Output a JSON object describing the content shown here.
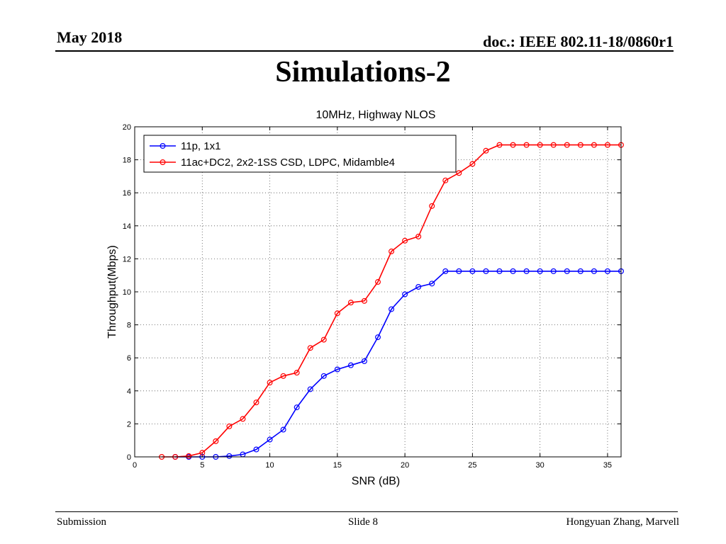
{
  "header": {
    "date": "May 2018",
    "doc": "doc.: IEEE 802.11-18/0860r1"
  },
  "slide": {
    "title": "Simulations-2"
  },
  "footer": {
    "left": "Submission",
    "center": "Slide 8",
    "right": "Hongyuan Zhang, Marvell"
  },
  "chart_data": {
    "type": "line",
    "title": "10MHz, Highway NLOS",
    "xlabel": "SNR (dB)",
    "ylabel": "Throughput(Mbps)",
    "xlim": [
      0,
      36
    ],
    "ylim": [
      0,
      20
    ],
    "xticks": [
      0,
      5,
      10,
      15,
      20,
      25,
      30,
      35
    ],
    "yticks": [
      0,
      2,
      4,
      6,
      8,
      10,
      12,
      14,
      16,
      18,
      20
    ],
    "grid": true,
    "legend_position": "top-left",
    "series": [
      {
        "name": "11p, 1x1",
        "color": "#0000ff",
        "x": [
          3,
          4,
          5,
          6,
          7,
          8,
          9,
          10,
          11,
          12,
          13,
          14,
          15,
          16,
          17,
          18,
          19,
          20,
          21,
          22,
          23,
          24,
          25,
          26,
          27,
          28,
          29,
          30,
          31,
          32,
          33,
          34,
          35,
          36
        ],
        "y": [
          0,
          0,
          0,
          0,
          0.05,
          0.15,
          0.45,
          1.05,
          1.65,
          3.0,
          4.1,
          4.9,
          5.3,
          5.55,
          5.8,
          7.25,
          8.95,
          9.85,
          10.3,
          10.5,
          11.25,
          11.25,
          11.25,
          11.25,
          11.25,
          11.25,
          11.25,
          11.25,
          11.25,
          11.25,
          11.25,
          11.25,
          11.25,
          11.25
        ]
      },
      {
        "name": "11ac+DC2, 2x2-1SS CSD, LDPC, Midamble4",
        "color": "#ff0000",
        "x": [
          2,
          3,
          4,
          5,
          6,
          7,
          8,
          9,
          10,
          11,
          12,
          13,
          14,
          15,
          16,
          17,
          18,
          19,
          20,
          21,
          22,
          23,
          24,
          25,
          26,
          27,
          28,
          29,
          30,
          31,
          32,
          33,
          34,
          35,
          36
        ],
        "y": [
          0,
          0,
          0.05,
          0.25,
          0.95,
          1.85,
          2.3,
          3.3,
          4.5,
          4.9,
          5.1,
          6.6,
          7.1,
          8.7,
          9.35,
          9.45,
          10.6,
          12.45,
          13.1,
          13.35,
          15.2,
          16.75,
          17.2,
          17.75,
          18.55,
          18.9,
          18.9,
          18.9,
          18.9,
          18.9,
          18.9,
          18.9,
          18.9,
          18.9,
          18.9
        ]
      }
    ]
  }
}
